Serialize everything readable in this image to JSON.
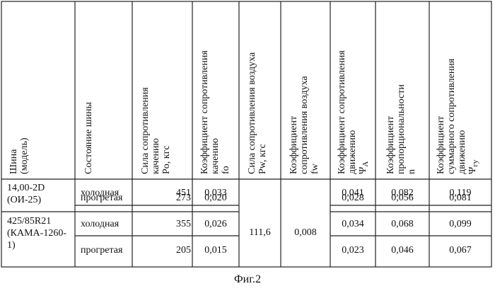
{
  "table": {
    "headers": {
      "tire": [
        "Шина",
        "(модель)"
      ],
      "state": [
        "Состояние шины"
      ],
      "po": [
        "Сила сопротивления",
        "качению",
        "Po, кгс"
      ],
      "fo": [
        "Коэффициент сопротивления",
        "качению",
        "fo"
      ],
      "pw": [
        "Сила сопротивления воздуха",
        "Pw, кгс"
      ],
      "fw": [
        "Коэффициент",
        "сопротивления воздуха",
        "fw"
      ],
      "psiA": [
        "Коэффициент сопротивления",
        "движению",
        "Ψ",
        "A"
      ],
      "n": [
        "Коэффициент",
        "пропорциональности",
        "n"
      ],
      "psiGy": [
        "Коэффициент",
        "суммарного сопротивления",
        "движению",
        "Ψ",
        "гу"
      ]
    },
    "tires": [
      {
        "model": "14,00-2D (ОИ-25)",
        "rows": [
          {
            "state": "холодная",
            "po": "451",
            "fo": "0,033",
            "psiA": "0,041",
            "n": "0,082",
            "psiGy": "0,119"
          },
          {
            "state": "прогретая",
            "po": "273",
            "fo": "0,020",
            "psiA": "0,028",
            "n": "0,056",
            "psiGy": "0,081"
          }
        ]
      },
      {
        "model": "425/85R21 (КАМА-1260-1)",
        "rows": [
          {
            "state": "холодная",
            "po": "355",
            "fo": "0,026",
            "psiA": "0,034",
            "n": "0,068",
            "psiGy": "0,099"
          },
          {
            "state": "прогретая",
            "po": "205",
            "fo": "0,015",
            "psiA": "0,023",
            "n": "0,046",
            "psiGy": "0,067"
          }
        ]
      }
    ],
    "merged": {
      "pw": "111,6",
      "fw": "0,008"
    }
  },
  "caption": "Фиг.2"
}
